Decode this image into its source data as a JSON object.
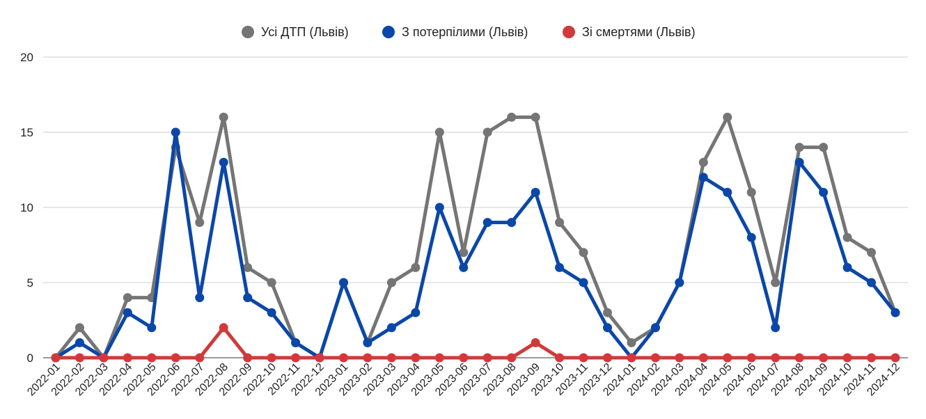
{
  "chart_data": {
    "type": "line",
    "title": "",
    "xlabel": "",
    "ylabel": "",
    "ylim": [
      0,
      20
    ],
    "y_ticks": [
      "0",
      "5",
      "10",
      "15",
      "20"
    ],
    "grid": true,
    "legend_position": "top-center",
    "categories": [
      "2022-01",
      "2022-02",
      "2022-03",
      "2022-04",
      "2022-05",
      "2022-06",
      "2022-07",
      "2022-08",
      "2022-09",
      "2022-10",
      "2022-11",
      "2022-12",
      "2023-01",
      "2023-02",
      "2023-03",
      "2023-04",
      "2023-05",
      "2023-06",
      "2023-07",
      "2023-08",
      "2023-09",
      "2023-10",
      "2023-11",
      "2023-12",
      "2024-01",
      "2024-02",
      "2024-03",
      "2024-04",
      "2024-05",
      "2024-06",
      "2024-07",
      "2024-08",
      "2024-09",
      "2024-10",
      "2024-11",
      "2024-12"
    ],
    "series": [
      {
        "name": "Усі ДТП (Львів)",
        "color": "#757575",
        "values": [
          0,
          2,
          0,
          4,
          4,
          14,
          9,
          16,
          6,
          5,
          1,
          0,
          5,
          1,
          5,
          6,
          15,
          7,
          15,
          16,
          16,
          9,
          7,
          3,
          1,
          2,
          5,
          13,
          16,
          11,
          5,
          14,
          14,
          8,
          7,
          3
        ]
      },
      {
        "name": "З потерпілими (Львів)",
        "color": "#0b47a8",
        "values": [
          0,
          1,
          0,
          3,
          2,
          15,
          4,
          13,
          4,
          3,
          1,
          0,
          5,
          1,
          2,
          3,
          10,
          6,
          9,
          9,
          11,
          6,
          5,
          2,
          0,
          2,
          5,
          12,
          11,
          8,
          2,
          13,
          11,
          6,
          5,
          3
        ]
      },
      {
        "name": "Зі смертями (Львів)",
        "color": "#d03a3a",
        "values": [
          0,
          0,
          0,
          0,
          0,
          0,
          0,
          2,
          0,
          0,
          0,
          0,
          0,
          0,
          0,
          0,
          0,
          0,
          0,
          0,
          1,
          0,
          0,
          0,
          0,
          0,
          0,
          0,
          0,
          0,
          0,
          0,
          0,
          0,
          0,
          0
        ]
      }
    ]
  }
}
